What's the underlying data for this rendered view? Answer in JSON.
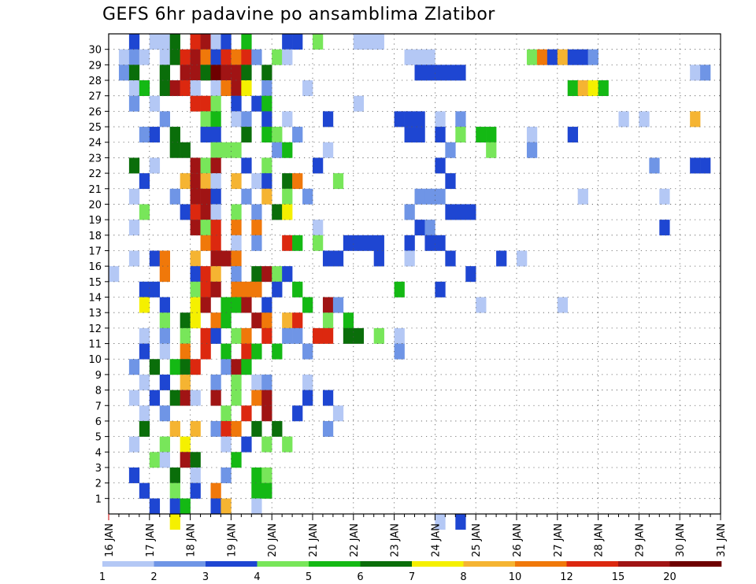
{
  "chart_data": {
    "type": "heatmap",
    "title": "GEFS 6hr padavine po ansamblima Zlatibor",
    "xlabel": "",
    "ylabel": "",
    "x_ticks": [
      "16 JAN",
      "17 JAN",
      "18 JAN",
      "19 JAN",
      "20 JAN",
      "21 JAN",
      "22 JAN",
      "23 JAN",
      "24 JAN",
      "25 JAN",
      "26 JAN",
      "27 JAN",
      "28 JAN",
      "29 JAN",
      "30 JAN",
      "31 JAN"
    ],
    "y_ticks": [
      1,
      2,
      3,
      4,
      5,
      6,
      7,
      8,
      9,
      10,
      11,
      12,
      13,
      14,
      15,
      16,
      17,
      18,
      19,
      20,
      21,
      22,
      23,
      24,
      25,
      26,
      27,
      28,
      29,
      30
    ],
    "xlim": [
      "16 JAN 00",
      "31 JAN 00"
    ],
    "ylim": [
      0,
      30
    ],
    "time_step_hours": 6,
    "grid": "dotted",
    "legend_placement": "bottom",
    "colorbar": {
      "labels": [
        "1",
        "2",
        "3",
        "4",
        "5",
        "6",
        "7",
        "8",
        "10",
        "12",
        "15",
        "20"
      ],
      "colors": [
        "#b4c8f5",
        "#6f95e6",
        "#1e46d2",
        "#78e65a",
        "#14b914",
        "#0a6e0a",
        "#f5f000",
        "#f5b432",
        "#f0780a",
        "#dc280f",
        "#a01414",
        "#6e0000"
      ]
    },
    "cell_grid_format": "Each string = one ensemble member (rows listed from 30 down to 1 and then 0). Each character = one 6-hour step starting 16 JAN 00 UTC. '.' = no precipitation; digits 1-9 and letters a-c = color class (1 = 1-2 mm, 2 = 2-3 ... 9 = 10-12, a = 12-15, b = 15-20, c = >20).",
    "cells": [
      "..3.116.ab13.5...33.4...111.................................2432....",
      ".121.16ab93a9a2.41...........111.........4938332....................",
      ".26..6.bb6cbb6.6..............33333......................12.1.1..3..",
      "..15.6ba1.19b7.2...1.........................5875..............",
      "..2.1...aa4.3.35........1...................................1....",
      ".....2...45.12.3.1...3......333.1.2...............1.1....8..........",
      "...23.6..33..6.54.2..........33.3.4.55...1...3..........................",
      "......66..444...25...1...........2...4...2..................................",
      "..6.1...b4b..3.4....3...........3....................2...33....",
      "...3...8b81.8.13.69...4..........3...........................",
      "..1...2.bb3..2.8.4.2..........222.............1.......1.....",
      "...4...3ab1.4.2.67...........2...333.....................",
      "..1.....b4a.9.9.....1.........32......................3",
      ".........9a.1.2..a5.4..3333..3.33.................",
      "..1.39..8.bb9........33...3..1...3....3.1..............",
      "1....9..3a8.2.6b43.................3..................",
      "...33...4ab.999.3.5.........5...3....................",
      "...7.3..7b.55b.3...5.b2.............1.......1.........",
      ".....4.67.95..b9.8a..4.5..............................",
      "...1.2.4.a3.49.a.22.aa.66.4.1.............................",
      "...3.1.9.a.5.a5.5..2........2...............................",
      "..2.6.56a..2b5..............................................",
      "...1.3.8..2.4.12...1.....................................",
      "..1.3.6b1.b.4.9b...3.3..........................................",
      "...1.2.....4.a.b..3...1....................................",
      "...6..8.8.2a9.6.6....2......................................",
      "..1..4.7...1.3.4.4.................................................",
      "....41.b6...5....................................................",
      "..3...6.1..2..54..........................................",
      "...3..4.3.9...55...........................................",
      "....3.35..38..1..........................................",
      "......7.........................1.3.............................."
    ]
  }
}
